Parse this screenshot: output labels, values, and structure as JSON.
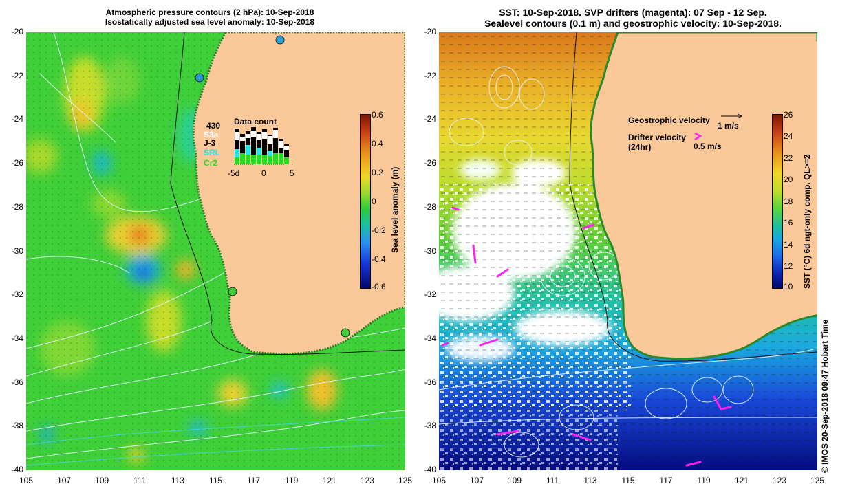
{
  "left_panel": {
    "title_line1": "Atmospheric pressure contours (2 hPa): 10-Sep-2018",
    "title_line2": "Isostatically adjusted sea level anomaly: 10-Sep-2018",
    "colorbar_label": "Sea level anomaly (m)",
    "colorbar_ticks": [
      "0.6",
      "0.4",
      "0.2",
      "0",
      "-0.2",
      "-0.4",
      "-0.6"
    ],
    "inset": {
      "title": "Data count",
      "satellites": [
        {
          "name": "430",
          "color": "#000000"
        },
        {
          "name": "S3a",
          "color": "#ffffff"
        },
        {
          "name": "J-3",
          "color": "#000000"
        },
        {
          "name": "SRL",
          "color": "#22e6e6"
        },
        {
          "name": "Cr2",
          "color": "#22dd22"
        }
      ],
      "axis_ticks": [
        "-5d",
        "0",
        "5"
      ]
    }
  },
  "right_panel": {
    "title_line1": "SST: 10-Sep-2018. SVP drifters (magenta): 07 Sep - 12 Sep.",
    "title_line2": "Sealevel contours (0.1 m) and geostrophic velocity: 10-Sep-2018.",
    "geo_velocity_label": "Geostrophic velocity",
    "geo_velocity_scale": "1 m/s",
    "drifter_label_line1": "Drifter velocity",
    "drifter_label_line2": "(24hr)",
    "drifter_scale": "0.5 m/s",
    "colorbar_label": "SST (°C) 6d ngt-only comp. QL>=2",
    "colorbar_ticks": [
      "26",
      "24",
      "22",
      "20",
      "18",
      "16",
      "14",
      "12",
      "10"
    ],
    "credit": "© IMOS 20-Sep-2018 09:47 Hobart Time"
  },
  "axes": {
    "lat_ticks": [
      "-20",
      "-22",
      "-24",
      "-26",
      "-28",
      "-30",
      "-32",
      "-34",
      "-36",
      "-38",
      "-40"
    ],
    "lon_ticks": [
      "105",
      "107",
      "109",
      "111",
      "113",
      "115",
      "117",
      "119",
      "121",
      "123",
      "125"
    ]
  },
  "colors": {
    "land": "#fbc89a",
    "drifters": "#ff22ee",
    "contours": "#e8f4ff"
  }
}
